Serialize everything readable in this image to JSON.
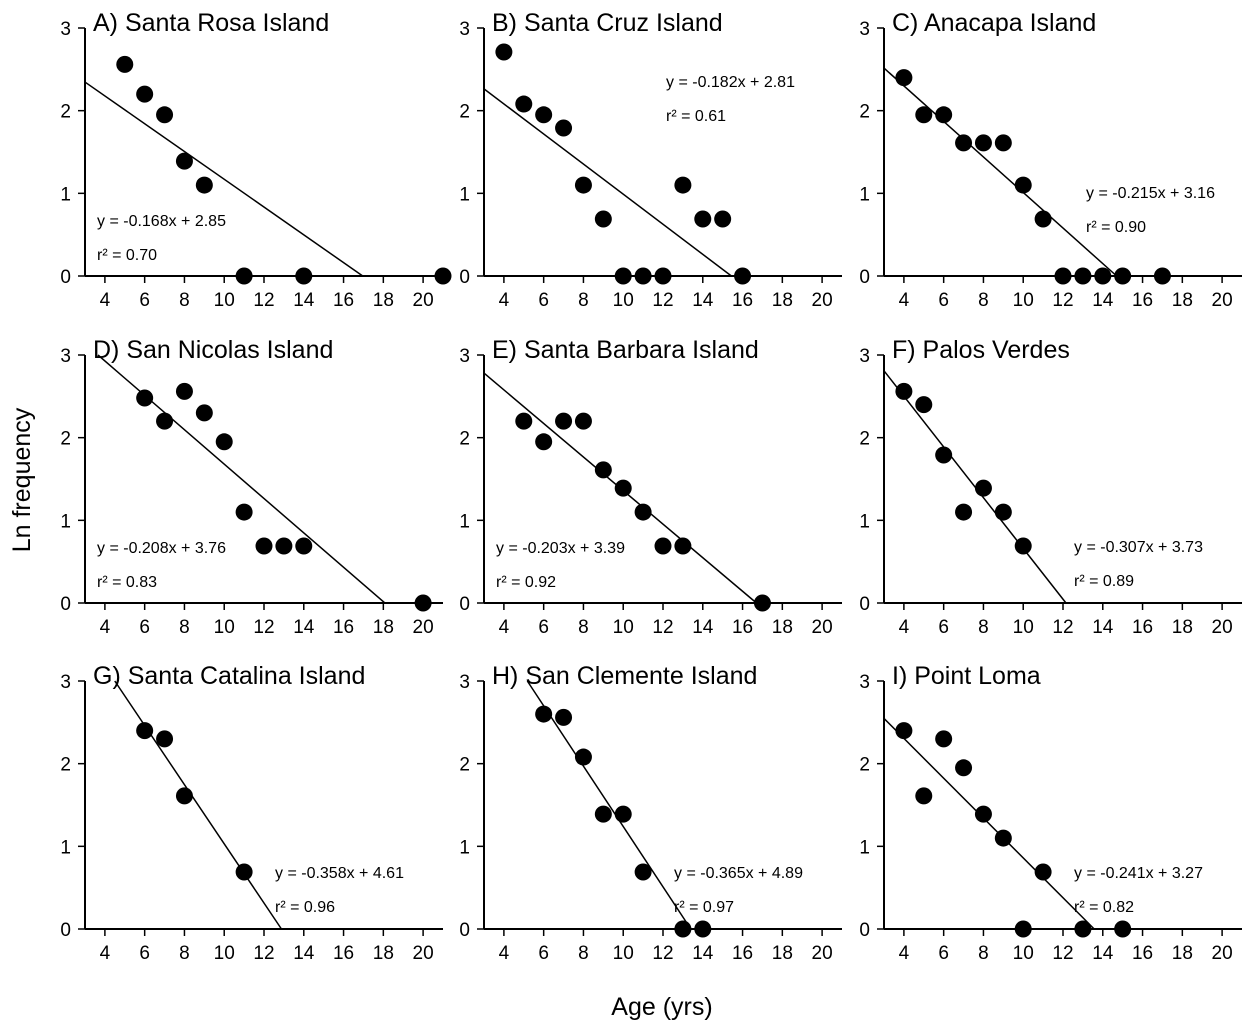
{
  "figure": {
    "ylabel": "Ln frequency",
    "xlabel": "Age (yrs)"
  },
  "chart_data": [
    {
      "type": "scatter",
      "title": "A) Santa Rosa Island",
      "x": [
        5,
        6,
        7,
        8,
        9,
        11,
        14,
        21
      ],
      "y": [
        2.56,
        2.2,
        1.95,
        1.39,
        1.1,
        0,
        0,
        0
      ],
      "regression": {
        "slope": -0.168,
        "intercept": 2.85
      },
      "equation_label": "y = -0.168x + 2.85",
      "r2_label": "r² = 0.70",
      "xlim": [
        3,
        21
      ],
      "ylim": [
        0,
        3
      ],
      "xticks": [
        4,
        6,
        8,
        10,
        12,
        14,
        16,
        18,
        20
      ],
      "yticks": [
        0,
        1,
        2,
        3
      ],
      "equation_position": "lower-left"
    },
    {
      "type": "scatter",
      "title": "B) Santa Cruz Island",
      "x": [
        4,
        5,
        6,
        7,
        8,
        9,
        10,
        11,
        12,
        13,
        14,
        15,
        16
      ],
      "y": [
        2.71,
        2.08,
        1.95,
        1.79,
        1.1,
        0.69,
        0,
        0,
        0,
        1.1,
        0.69,
        0.69,
        0
      ],
      "regression": {
        "slope": -0.182,
        "intercept": 2.81
      },
      "equation_label": "y = -0.182x + 2.81",
      "r2_label": "r² = 0.61",
      "xlim": [
        3,
        21
      ],
      "ylim": [
        0,
        3
      ],
      "xticks": [
        4,
        6,
        8,
        10,
        12,
        14,
        16,
        18,
        20
      ],
      "yticks": [
        0,
        1,
        2,
        3
      ],
      "equation_position": "upper-right"
    },
    {
      "type": "scatter",
      "title": "C) Anacapa Island",
      "x": [
        4,
        5,
        6,
        7,
        8,
        9,
        10,
        11,
        12,
        13,
        14,
        15,
        17
      ],
      "y": [
        2.4,
        1.95,
        1.95,
        1.61,
        1.61,
        1.61,
        1.1,
        0.69,
        0,
        0,
        0,
        0,
        0
      ],
      "regression": {
        "slope": -0.215,
        "intercept": 3.16
      },
      "equation_label": "y = -0.215x + 3.16",
      "r2_label": "r² = 0.90",
      "xlim": [
        3,
        21
      ],
      "ylim": [
        0,
        3
      ],
      "xticks": [
        4,
        6,
        8,
        10,
        12,
        14,
        16,
        18,
        20
      ],
      "yticks": [
        0,
        1,
        2,
        3
      ],
      "equation_position": "middle-right"
    },
    {
      "type": "scatter",
      "title": "D) San Nicolas Island",
      "x": [
        6,
        7,
        8,
        9,
        10,
        11,
        12,
        13,
        14,
        20
      ],
      "y": [
        2.48,
        2.2,
        2.56,
        2.3,
        1.95,
        1.1,
        0.69,
        0.69,
        0.69,
        0
      ],
      "regression": {
        "slope": -0.208,
        "intercept": 3.76
      },
      "equation_label": "y = -0.208x + 3.76",
      "r2_label": "r² = 0.83",
      "xlim": [
        3,
        21
      ],
      "ylim": [
        0,
        3
      ],
      "xticks": [
        4,
        6,
        8,
        10,
        12,
        14,
        16,
        18,
        20
      ],
      "yticks": [
        0,
        1,
        2,
        3
      ],
      "equation_position": "lower-left"
    },
    {
      "type": "scatter",
      "title": "E) Santa Barbara Island",
      "x": [
        5,
        6,
        7,
        8,
        9,
        10,
        11,
        12,
        13,
        17
      ],
      "y": [
        2.2,
        1.95,
        2.2,
        2.2,
        1.61,
        1.39,
        1.1,
        0.69,
        0.69,
        0
      ],
      "regression": {
        "slope": -0.203,
        "intercept": 3.39
      },
      "equation_label": "y = -0.203x + 3.39",
      "r2_label": "r² = 0.92",
      "xlim": [
        3,
        21
      ],
      "ylim": [
        0,
        3
      ],
      "xticks": [
        4,
        6,
        8,
        10,
        12,
        14,
        16,
        18,
        20
      ],
      "yticks": [
        0,
        1,
        2,
        3
      ],
      "equation_position": "lower-left"
    },
    {
      "type": "scatter",
      "title": "F) Palos Verdes",
      "x": [
        4,
        5,
        6,
        7,
        8,
        9,
        10
      ],
      "y": [
        2.56,
        2.4,
        1.79,
        1.1,
        1.39,
        1.1,
        0.69
      ],
      "regression": {
        "slope": -0.307,
        "intercept": 3.73
      },
      "equation_label": "y = -0.307x + 3.73",
      "r2_label": "r² = 0.89",
      "xlim": [
        3,
        21
      ],
      "ylim": [
        0,
        3
      ],
      "xticks": [
        4,
        6,
        8,
        10,
        12,
        14,
        16,
        18,
        20
      ],
      "yticks": [
        0,
        1,
        2,
        3
      ],
      "equation_position": "lower-right"
    },
    {
      "type": "scatter",
      "title": "G) Santa Catalina Island",
      "x": [
        6,
        7,
        8,
        11
      ],
      "y": [
        2.4,
        2.3,
        1.61,
        0.69
      ],
      "regression": {
        "slope": -0.358,
        "intercept": 4.61
      },
      "equation_label": "y = -0.358x + 4.61",
      "r2_label": "r² = 0.96",
      "xlim": [
        3,
        21
      ],
      "ylim": [
        0,
        3
      ],
      "xticks": [
        4,
        6,
        8,
        10,
        12,
        14,
        16,
        18,
        20
      ],
      "yticks": [
        0,
        1,
        2,
        3
      ],
      "equation_position": "lower-right"
    },
    {
      "type": "scatter",
      "title": "H) San Clemente Island",
      "x": [
        6,
        7,
        8,
        9,
        10,
        11,
        13,
        14
      ],
      "y": [
        2.6,
        2.56,
        2.08,
        1.39,
        1.39,
        0.69,
        0,
        0
      ],
      "regression": {
        "slope": -0.365,
        "intercept": 4.89
      },
      "equation_label": "y = -0.365x + 4.89",
      "r2_label": "r² = 0.97",
      "xlim": [
        3,
        21
      ],
      "ylim": [
        0,
        3
      ],
      "xticks": [
        4,
        6,
        8,
        10,
        12,
        14,
        16,
        18,
        20
      ],
      "yticks": [
        0,
        1,
        2,
        3
      ],
      "equation_position": "lower-right"
    },
    {
      "type": "scatter",
      "title": "I) Point Loma",
      "x": [
        4,
        5,
        6,
        7,
        8,
        9,
        10,
        11,
        13,
        15
      ],
      "y": [
        2.4,
        1.61,
        2.3,
        1.95,
        1.39,
        1.1,
        0,
        0.69,
        0,
        0
      ],
      "regression": {
        "slope": -0.241,
        "intercept": 3.27
      },
      "equation_label": "y = -0.241x + 3.27",
      "r2_label": "r² = 0.82",
      "xlim": [
        3,
        21
      ],
      "ylim": [
        0,
        3
      ],
      "xticks": [
        4,
        6,
        8,
        10,
        12,
        14,
        16,
        18,
        20
      ],
      "yticks": [
        0,
        1,
        2,
        3
      ],
      "equation_position": "lower-right"
    }
  ]
}
